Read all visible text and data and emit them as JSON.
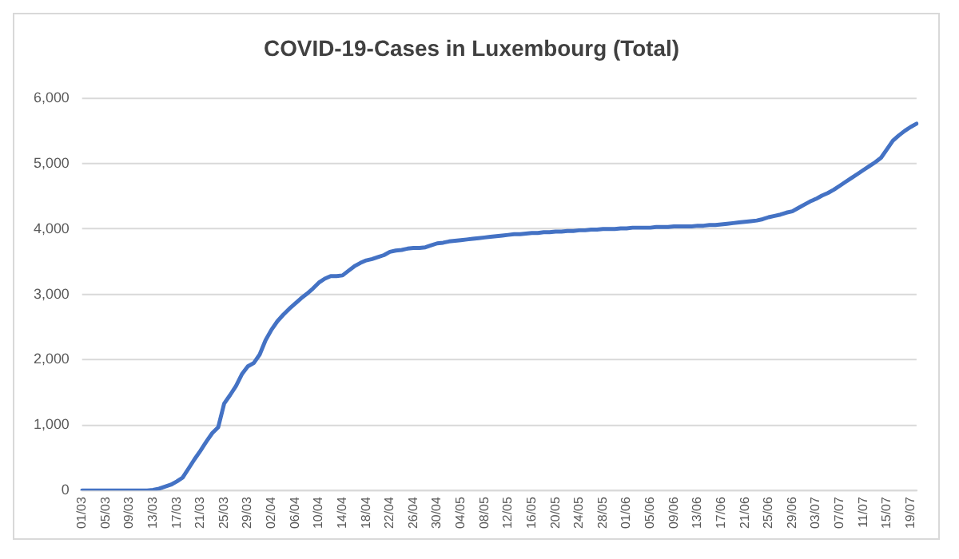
{
  "chart_data": {
    "type": "line",
    "title": "COVID-19-Cases in Luxembourg (Total)",
    "categories": [
      "01/03",
      null,
      null,
      null,
      "05/03",
      null,
      null,
      null,
      "09/03",
      null,
      null,
      null,
      "13/03",
      null,
      null,
      null,
      "17/03",
      null,
      null,
      null,
      "21/03",
      null,
      null,
      null,
      "25/03",
      null,
      null,
      null,
      "29/03",
      null,
      null,
      null,
      "02/04",
      null,
      null,
      null,
      "06/04",
      null,
      null,
      null,
      "10/04",
      null,
      null,
      null,
      "14/04",
      null,
      null,
      null,
      "18/04",
      null,
      null,
      null,
      "22/04",
      null,
      null,
      null,
      "26/04",
      null,
      null,
      null,
      "30/04",
      null,
      null,
      null,
      "04/05",
      null,
      null,
      null,
      "08/05",
      null,
      null,
      null,
      "12/05",
      null,
      null,
      null,
      "16/05",
      null,
      null,
      null,
      "20/05",
      null,
      null,
      null,
      "24/05",
      null,
      null,
      null,
      "28/05",
      null,
      null,
      null,
      "01/06",
      null,
      null,
      null,
      "05/06",
      null,
      null,
      null,
      "09/06",
      null,
      null,
      null,
      "13/06",
      null,
      null,
      null,
      "17/06",
      null,
      null,
      null,
      "21/06",
      null,
      null,
      null,
      "25/06",
      null,
      null,
      null,
      "29/06",
      null,
      null,
      null,
      "03/07",
      null,
      null,
      null,
      "07/07",
      null,
      null,
      null,
      "11/07",
      null,
      null,
      null,
      "15/07",
      null,
      null,
      null,
      "19/07",
      null
    ],
    "series": [
      {
        "color": "#4472c4",
        "values": [
          0,
          0,
          0,
          0,
          0,
          0,
          0,
          0,
          0,
          0,
          0,
          0,
          10,
          30,
          60,
          90,
          140,
          200,
          340,
          480,
          610,
          750,
          880,
          970,
          1330,
          1460,
          1600,
          1780,
          1900,
          1950,
          2080,
          2300,
          2460,
          2590,
          2690,
          2780,
          2860,
          2940,
          3010,
          3090,
          3180,
          3240,
          3280,
          3280,
          3290,
          3360,
          3430,
          3480,
          3520,
          3540,
          3570,
          3600,
          3650,
          3670,
          3680,
          3700,
          3710,
          3710,
          3720,
          3750,
          3780,
          3790,
          3810,
          3820,
          3830,
          3840,
          3850,
          3860,
          3870,
          3880,
          3890,
          3900,
          3910,
          3920,
          3920,
          3930,
          3940,
          3940,
          3950,
          3950,
          3960,
          3960,
          3970,
          3970,
          3980,
          3980,
          3990,
          3990,
          4000,
          4000,
          4000,
          4010,
          4010,
          4020,
          4020,
          4020,
          4020,
          4030,
          4030,
          4030,
          4040,
          4040,
          4040,
          4040,
          4050,
          4050,
          4060,
          4060,
          4070,
          4080,
          4090,
          4100,
          4110,
          4120,
          4130,
          4150,
          4180,
          4200,
          4220,
          4250,
          4270,
          4320,
          4370,
          4420,
          4460,
          4510,
          4550,
          4600,
          4660,
          4720,
          4780,
          4840,
          4900,
          4960,
          5020,
          5090,
          5220,
          5350,
          5430,
          5500,
          5560,
          5610
        ]
      }
    ],
    "ylim": [
      0,
      6000
    ],
    "yticks": [
      {
        "value": 0,
        "label": "0"
      },
      {
        "value": 1000,
        "label": "1,000"
      },
      {
        "value": 2000,
        "label": "2,000"
      },
      {
        "value": 3000,
        "label": "3,000"
      },
      {
        "value": 4000,
        "label": "4,000"
      },
      {
        "value": 5000,
        "label": "5,000"
      },
      {
        "value": 6000,
        "label": "6,000"
      }
    ],
    "grid": "y",
    "legend": false,
    "marker": "none",
    "line_style": "solid"
  }
}
